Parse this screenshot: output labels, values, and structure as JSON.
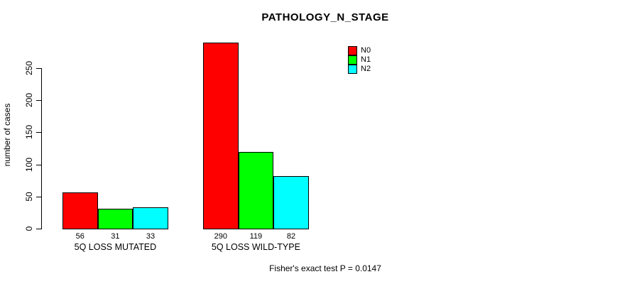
{
  "chart_data": {
    "type": "bar",
    "title": "PATHOLOGY_N_STAGE",
    "ylabel": "number of cases",
    "xlabel": "",
    "categories": [
      "5Q LOSS MUTATED",
      "5Q LOSS WILD-TYPE"
    ],
    "series": [
      {
        "name": "N0",
        "color": "#ff0000",
        "values": [
          56,
          290
        ]
      },
      {
        "name": "N1",
        "color": "#00ff00",
        "values": [
          31,
          119
        ]
      },
      {
        "name": "N2",
        "color": "#00ffff",
        "values": [
          33,
          82
        ]
      }
    ],
    "yticks": [
      0,
      50,
      100,
      150,
      200,
      250
    ],
    "ylim": [
      0,
      290
    ],
    "bar_labels_shown": true,
    "grid": false,
    "legend_position": "top-right",
    "annotation": "Fisher's exact test P = 0.0147",
    "axis_color": "#000000",
    "background_color": "#ffffff"
  }
}
